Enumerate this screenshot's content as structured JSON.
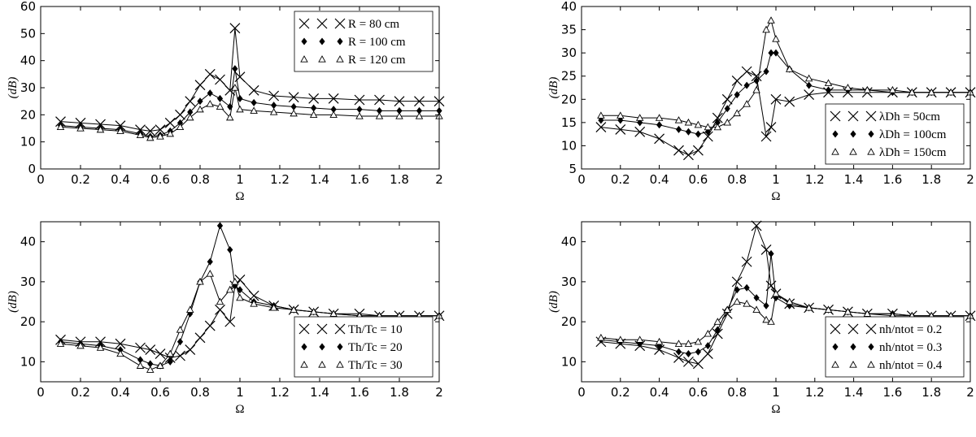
{
  "chart_data": [
    {
      "type": "line",
      "xlabel": "Ω",
      "ylabel": "(dB)",
      "legend": "upper right",
      "x": [
        0.1,
        0.2,
        0.3,
        0.4,
        0.5,
        0.55,
        0.6,
        0.65,
        0.7,
        0.75,
        0.8,
        0.85,
        0.9,
        0.95,
        0.975,
        1.0,
        1.07,
        1.17,
        1.27,
        1.37,
        1.47,
        1.6,
        1.7,
        1.8,
        1.9,
        2.0
      ],
      "xlim": [
        0,
        2
      ],
      "ylim": [
        0,
        60
      ],
      "xticks": [
        0,
        0.2,
        0.4,
        0.6,
        0.8,
        1,
        1.2,
        1.4,
        1.6,
        1.8,
        2
      ],
      "yticks": [
        0,
        10,
        20,
        30,
        40,
        50,
        60
      ],
      "series": [
        {
          "name": "R = 80 cm",
          "color": "#000000",
          "marker": "x",
          "values": [
            17.5,
            17,
            16.5,
            16,
            14.5,
            14,
            14.5,
            17,
            20,
            25,
            31,
            35,
            33,
            29,
            52,
            34,
            29,
            27,
            26.5,
            26,
            26,
            25.5,
            25.5,
            25,
            25,
            25
          ]
        },
        {
          "name": "R = 100 cm",
          "color": "#000000",
          "marker": "diamond",
          "values": [
            16,
            15.5,
            15,
            14.5,
            13,
            12,
            12.5,
            14,
            17,
            21,
            25,
            28,
            26,
            23,
            37,
            26,
            24.5,
            23.5,
            23,
            22.5,
            22,
            22,
            21.5,
            21.5,
            21.5,
            21.5
          ]
        },
        {
          "name": "R = 120 cm",
          "color": "#000000",
          "marker": "triangle",
          "values": [
            15.5,
            15,
            14.5,
            14,
            12.5,
            11.5,
            12,
            13,
            15.5,
            19,
            22,
            24,
            23,
            19,
            30,
            22,
            21.5,
            21,
            20.5,
            20,
            20,
            19.5,
            19.5,
            19.5,
            19.5,
            19.5
          ]
        }
      ]
    },
    {
      "type": "line",
      "xlabel": "Ω",
      "ylabel": "(dB)",
      "legend": "lower right",
      "x": [
        0.1,
        0.2,
        0.3,
        0.4,
        0.5,
        0.55,
        0.6,
        0.65,
        0.7,
        0.75,
        0.8,
        0.85,
        0.9,
        0.95,
        0.975,
        1.0,
        1.07,
        1.17,
        1.27,
        1.37,
        1.47,
        1.6,
        1.7,
        1.8,
        1.9,
        2.0
      ],
      "xlim": [
        0,
        2
      ],
      "ylim": [
        5,
        40
      ],
      "xticks": [
        0,
        0.2,
        0.4,
        0.6,
        0.8,
        1,
        1.2,
        1.4,
        1.6,
        1.8,
        2
      ],
      "yticks": [
        5,
        10,
        15,
        20,
        25,
        30,
        35,
        40
      ],
      "series": [
        {
          "name": "λDh = 50cm",
          "color": "#000000",
          "marker": "x",
          "values": [
            14,
            13.5,
            13,
            11.5,
            9,
            8,
            9,
            12,
            16,
            20,
            24,
            26,
            25,
            12,
            14,
            20,
            19.5,
            21,
            21.5,
            21.5,
            21.5,
            21.5,
            21.5,
            21.5,
            21.5,
            21.5
          ]
        },
        {
          "name": "λDh = 100cm",
          "color": "#000000",
          "marker": "diamond",
          "values": [
            15.5,
            15.5,
            15,
            14.5,
            13.5,
            13,
            12.5,
            13,
            15,
            18,
            21,
            23,
            24,
            26,
            30,
            30,
            26.5,
            23,
            22,
            22,
            22,
            21.5,
            21.5,
            21.5,
            21.5,
            21.5
          ]
        },
        {
          "name": "λDh = 150cm",
          "color": "#000000",
          "marker": "triangle",
          "values": [
            16.5,
            16.5,
            16,
            16,
            15.5,
            15,
            14.5,
            14,
            14,
            15,
            17,
            19,
            22,
            35,
            37,
            33,
            26.5,
            24.5,
            23.5,
            22.5,
            22,
            22,
            21.5,
            21.5,
            21.5,
            21.5
          ]
        }
      ]
    },
    {
      "type": "line",
      "xlabel": "Ω",
      "ylabel": "(dB)",
      "legend": "lower right",
      "x": [
        0.1,
        0.2,
        0.3,
        0.4,
        0.5,
        0.55,
        0.6,
        0.65,
        0.7,
        0.75,
        0.8,
        0.85,
        0.9,
        0.95,
        0.975,
        1.0,
        1.07,
        1.17,
        1.27,
        1.37,
        1.47,
        1.6,
        1.7,
        1.8,
        1.9,
        2.0
      ],
      "xlim": [
        0,
        2
      ],
      "ylim": [
        5,
        45
      ],
      "xticks": [
        0,
        0.2,
        0.4,
        0.6,
        0.8,
        1,
        1.2,
        1.4,
        1.6,
        1.8,
        2
      ],
      "yticks": [
        10,
        20,
        30,
        40
      ],
      "series": [
        {
          "name": "Th/Tc = 10",
          "color": "#000000",
          "marker": "x",
          "values": [
            15.5,
            15,
            15,
            14.5,
            13.5,
            13,
            12,
            11,
            11.5,
            13,
            16,
            19,
            23,
            20,
            29,
            30.5,
            26.5,
            24,
            23,
            22.5,
            22,
            22,
            21.5,
            21.5,
            21.5,
            21.5
          ]
        },
        {
          "name": "Th/Tc = 20",
          "color": "#000000",
          "marker": "diamond",
          "values": [
            15,
            14.5,
            14,
            13,
            10.5,
            9.5,
            9,
            10,
            15,
            22,
            30,
            35,
            44,
            38,
            29,
            28,
            25,
            24,
            23,
            22.5,
            22,
            21.5,
            21.5,
            21.5,
            21.5,
            21.5
          ]
        },
        {
          "name": "Th/Tc = 30",
          "color": "#000000",
          "marker": "triangle",
          "values": [
            14.5,
            14,
            13.5,
            12,
            9,
            8,
            9,
            12,
            18,
            23,
            30,
            32,
            25,
            28,
            30,
            26,
            24.5,
            23.5,
            23,
            22.5,
            22,
            21.5,
            21.5,
            21.5,
            21.5,
            21.5
          ]
        }
      ]
    },
    {
      "type": "line",
      "xlabel": "Ω",
      "ylabel": "(dB)",
      "legend": "lower right",
      "x": [
        0.1,
        0.2,
        0.3,
        0.4,
        0.5,
        0.55,
        0.6,
        0.65,
        0.7,
        0.75,
        0.8,
        0.85,
        0.9,
        0.95,
        0.975,
        1.0,
        1.07,
        1.17,
        1.27,
        1.37,
        1.47,
        1.6,
        1.7,
        1.8,
        1.9,
        2.0
      ],
      "xlim": [
        0,
        2
      ],
      "ylim": [
        5,
        45
      ],
      "xticks": [
        0,
        0.2,
        0.4,
        0.6,
        0.8,
        1,
        1.2,
        1.4,
        1.6,
        1.8,
        2
      ],
      "yticks": [
        10,
        20,
        30,
        40
      ],
      "series": [
        {
          "name": "nh/ntot = 0.2",
          "color": "#000000",
          "marker": "x",
          "values": [
            15,
            14.5,
            14,
            13,
            11,
            10,
            9.5,
            12,
            17,
            22,
            30,
            35,
            44,
            38,
            29,
            27,
            24.5,
            23.5,
            23,
            22.5,
            22,
            22,
            21.5,
            21.5,
            21.5,
            21.5
          ]
        },
        {
          "name": "nh/ntot = 0.3",
          "color": "#000000",
          "marker": "diamond",
          "values": [
            15.5,
            15,
            14.5,
            14,
            12.5,
            12,
            12.5,
            14,
            18,
            23,
            28,
            28.5,
            26,
            24,
            37,
            26,
            24,
            23.5,
            23,
            22.5,
            22,
            22,
            21.5,
            21.5,
            21.5,
            21.5
          ]
        },
        {
          "name": "nh/ntot = 0.4",
          "color": "#000000",
          "marker": "triangle",
          "values": [
            16,
            15.5,
            15.5,
            15,
            14.5,
            14.5,
            15,
            17,
            20,
            23,
            25,
            24.5,
            23,
            20.5,
            20,
            27,
            25,
            23.5,
            23,
            22.5,
            22,
            21.5,
            21.5,
            21.5,
            21.5,
            21.5
          ]
        }
      ]
    }
  ]
}
